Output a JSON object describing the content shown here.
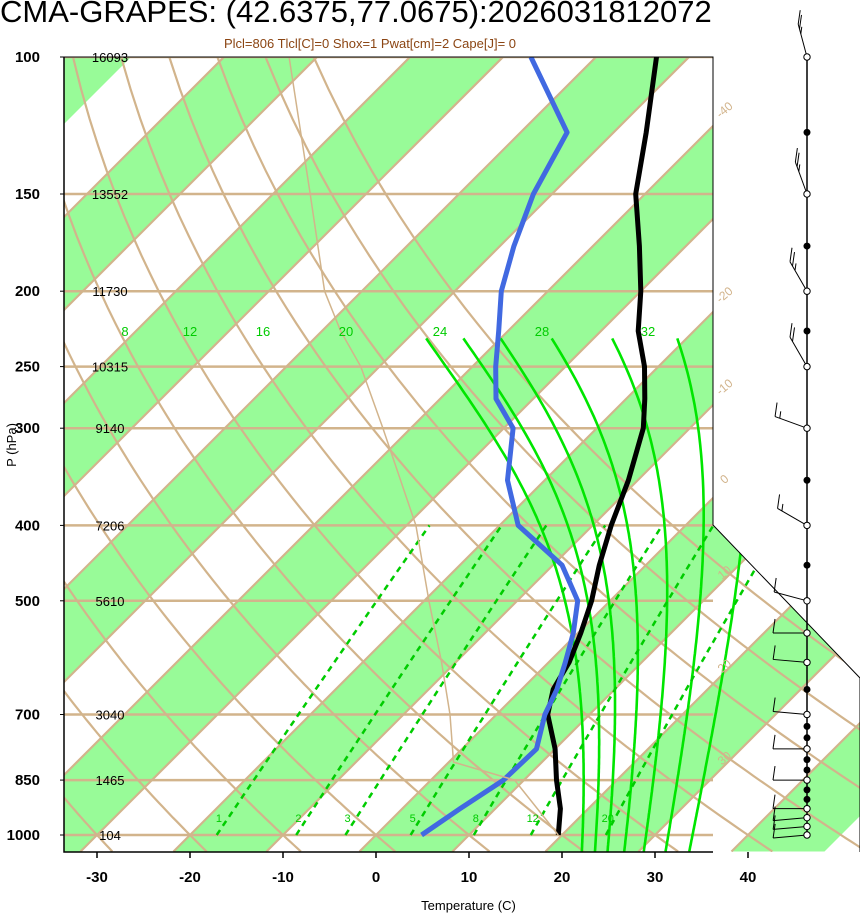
{
  "title": "CMA-GRAPES: (42.6375,77.0675):2026031812072",
  "subtitle": "Plcl=806 Tlcl[C]=0 Shox=1 Pwat[cm]=2 Cape[J]= 0",
  "chart_data": {
    "type": "line",
    "title": "CMA-GRAPES: (42.6375,77.0675):2026031812072",
    "subtitle": "Plcl=806 Tlcl[C]=0 Shox=1 Pwat[cm]=2 Cape[J]= 0",
    "xlabel": "Temperature (C)",
    "ylabel": "P (hPa)",
    "xlim": [
      -33,
      52
    ],
    "x_ticks": [
      -30,
      -20,
      -10,
      0,
      10,
      20,
      30,
      40
    ],
    "y_ticks": [
      {
        "p": 100,
        "label": "100",
        "height": "16093"
      },
      {
        "p": 150,
        "label": "150",
        "height": "13552"
      },
      {
        "p": 200,
        "label": "200",
        "height": "11730"
      },
      {
        "p": 250,
        "label": "250",
        "height": "10315"
      },
      {
        "p": 300,
        "label": "300",
        "height": "9140"
      },
      {
        "p": 400,
        "label": "400",
        "height": "7206"
      },
      {
        "p": 500,
        "label": "500",
        "height": "5610"
      },
      {
        "p": 700,
        "label": "700",
        "height": "3040"
      },
      {
        "p": 850,
        "label": "850",
        "height": "1465"
      },
      {
        "p": 1000,
        "label": "1000",
        "height": "104"
      }
    ],
    "isotherms": [
      -100,
      -90,
      -80,
      -70,
      -60,
      -50,
      -40,
      -30,
      -20,
      -10,
      0,
      10,
      20,
      30,
      40
    ],
    "isotherm_labels": [
      {
        "t": -40,
        "label": "-40"
      },
      {
        "t": -30,
        "label": "-30"
      },
      {
        "t": -20,
        "label": "-20"
      },
      {
        "t": -10,
        "label": "-10"
      },
      {
        "t": 0,
        "label": "0"
      },
      {
        "t": 10,
        "label": "10"
      },
      {
        "t": 20,
        "label": "20"
      },
      {
        "t": 30,
        "label": "30"
      }
    ],
    "dry_adiabats": [
      20,
      30,
      40,
      50,
      60,
      70,
      80,
      90,
      100,
      110,
      120,
      130,
      140,
      150,
      160
    ],
    "moist_adiabats": [
      8,
      12,
      16,
      20,
      24,
      28,
      32
    ],
    "mixing_ratios": [
      "1",
      "2",
      "3",
      "5",
      "8",
      "12",
      "20"
    ],
    "mixing_ratio_values": [
      1,
      2,
      3,
      5,
      8,
      12,
      20
    ],
    "series": [
      {
        "name": "Temperature",
        "color": "#000000",
        "points": [
          [
            1000,
            19.6
          ],
          [
            925,
            17
          ],
          [
            850,
            13.5
          ],
          [
            775,
            10
          ],
          [
            700,
            5.5
          ],
          [
            650,
            3.4
          ],
          [
            600,
            2.2
          ],
          [
            550,
            0.3
          ],
          [
            500,
            -2
          ],
          [
            450,
            -5
          ],
          [
            400,
            -8
          ],
          [
            350,
            -11
          ],
          [
            300,
            -15
          ],
          [
            275,
            -18
          ],
          [
            250,
            -21.5
          ],
          [
            225,
            -26
          ],
          [
            200,
            -30
          ],
          [
            175,
            -35
          ],
          [
            150,
            -41
          ],
          [
            125,
            -46.5
          ],
          [
            100,
            -53.5
          ]
        ]
      },
      {
        "name": "Dewpoint",
        "color": "#4169e1",
        "points": [
          [
            1000,
            4.9
          ],
          [
            925,
            6.2
          ],
          [
            850,
            7.8
          ],
          [
            775,
            8
          ],
          [
            700,
            5.2
          ],
          [
            650,
            3.8
          ],
          [
            600,
            1.8
          ],
          [
            550,
            -0.5
          ],
          [
            500,
            -3.5
          ],
          [
            450,
            -9
          ],
          [
            400,
            -18
          ],
          [
            350,
            -24
          ],
          [
            300,
            -29
          ],
          [
            275,
            -34
          ],
          [
            250,
            -37.5
          ],
          [
            225,
            -41
          ],
          [
            200,
            -45
          ],
          [
            175,
            -48.5
          ],
          [
            150,
            -52
          ],
          [
            125,
            -55
          ],
          [
            100,
            -67
          ]
        ]
      },
      {
        "name": "Parcel",
        "color": "#d2b48c",
        "points": [
          [
            1000,
            19.6
          ],
          [
            850,
            9
          ],
          [
            806,
            0.5
          ],
          [
            700,
            -5
          ],
          [
            600,
            -11.5
          ],
          [
            500,
            -19.5
          ],
          [
            400,
            -29
          ],
          [
            300,
            -43
          ],
          [
            250,
            -52
          ],
          [
            225,
            -58
          ],
          [
            200,
            -64
          ],
          [
            150,
            -76
          ],
          [
            100,
            -93
          ]
        ]
      }
    ],
    "wind_levels": [
      1000,
      975,
      950,
      925,
      900,
      875,
      850,
      825,
      800,
      775,
      750,
      725,
      700,
      650,
      600,
      550,
      500,
      450,
      400,
      350,
      300,
      250,
      225,
      200,
      175,
      150,
      125,
      100
    ],
    "wind_obs": [
      {
        "p": 1000,
        "dir": 265,
        "spd": 10
      },
      {
        "p": 975,
        "dir": 265,
        "spd": 10
      },
      {
        "p": 950,
        "dir": 265,
        "spd": 10
      },
      {
        "p": 925,
        "dir": 270,
        "spd": 10
      },
      {
        "p": 850,
        "dir": 270,
        "spd": 10
      },
      {
        "p": 775,
        "dir": 270,
        "spd": 10
      },
      {
        "p": 700,
        "dir": 275,
        "spd": 10
      },
      {
        "p": 600,
        "dir": 275,
        "spd": 10
      },
      {
        "p": 550,
        "dir": 270,
        "spd": 10
      },
      {
        "p": 500,
        "dir": 285,
        "spd": 10
      },
      {
        "p": 400,
        "dir": 300,
        "spd": 15
      },
      {
        "p": 300,
        "dir": 290,
        "spd": 15
      },
      {
        "p": 250,
        "dir": 330,
        "spd": 20
      },
      {
        "p": 200,
        "dir": 330,
        "spd": 25
      },
      {
        "p": 150,
        "dir": 340,
        "spd": 25
      },
      {
        "p": 100,
        "dir": 345,
        "spd": 25
      }
    ],
    "colors": {
      "green_band": "#98fb98",
      "grid": "#d2b48c",
      "moist": "#00e600",
      "mixing": "#00cc00",
      "temperature": "#000000",
      "dewpoint": "#4169e1",
      "parcel": "#d2b48c",
      "height_label": "#000000"
    }
  }
}
